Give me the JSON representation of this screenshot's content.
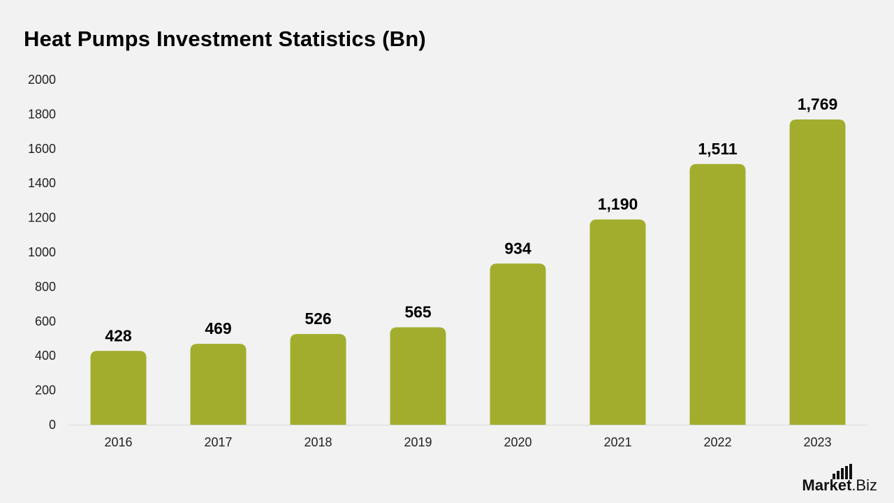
{
  "chart_data": {
    "type": "bar",
    "title": "Heat Pumps Investment Statistics (Bn)",
    "categories": [
      "2016",
      "2017",
      "2018",
      "2019",
      "2020",
      "2021",
      "2022",
      "2023"
    ],
    "values": [
      428,
      469,
      526,
      565,
      934,
      1190,
      1511,
      1769
    ],
    "data_labels": [
      "428",
      "469",
      "526",
      "565",
      "934",
      "1,190",
      "1,511",
      "1,769"
    ],
    "y_ticks": [
      "0",
      "200",
      "400",
      "600",
      "800",
      "1000",
      "1200",
      "1400",
      "1600",
      "1800",
      "2000"
    ],
    "ylim": [
      0,
      2000
    ],
    "xlabel": "",
    "ylabel": "",
    "grid": false,
    "legend": "none",
    "bar_color": "#a2ad2d"
  },
  "brand": {
    "part1": "Market",
    "part2": ".Biz"
  },
  "colors": {
    "background": "#f2f2f2",
    "axis": "#d9d9d9"
  }
}
